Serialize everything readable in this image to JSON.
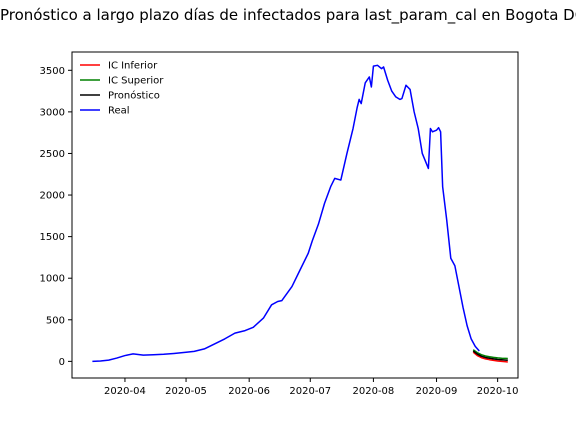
{
  "chart_data": {
    "type": "line",
    "title": "Pronóstico a largo plazo días de infectados para last_param_cal en Bogota DC",
    "xlabel": "",
    "ylabel": "",
    "x_range": [
      "2020-03-06",
      "2020-10-11"
    ],
    "ylim": [
      -200,
      3720
    ],
    "x_ticks": [
      {
        "date": "2020-04-01",
        "label": "2020-04"
      },
      {
        "date": "2020-05-01",
        "label": "2020-05"
      },
      {
        "date": "2020-06-01",
        "label": "2020-06"
      },
      {
        "date": "2020-07-01",
        "label": "2020-07"
      },
      {
        "date": "2020-08-01",
        "label": "2020-08"
      },
      {
        "date": "2020-09-01",
        "label": "2020-09"
      },
      {
        "date": "2020-10-01",
        "label": "2020-10"
      }
    ],
    "y_ticks": [
      0,
      500,
      1000,
      1500,
      2000,
      2500,
      3000,
      3500
    ],
    "grid": false,
    "legend_position": "top-left",
    "series": [
      {
        "name": "IC Inferior",
        "color": "#ff0000",
        "points": [
          [
            "2020-09-19",
            110
          ],
          [
            "2020-09-21",
            70
          ],
          [
            "2020-09-23",
            45
          ],
          [
            "2020-09-25",
            30
          ],
          [
            "2020-09-27",
            20
          ],
          [
            "2020-09-29",
            12
          ],
          [
            "2020-10-01",
            5
          ],
          [
            "2020-10-03",
            0
          ],
          [
            "2020-10-05",
            -5
          ],
          [
            "2020-10-06",
            -8
          ]
        ]
      },
      {
        "name": "IC Superior",
        "color": "#008000",
        "points": [
          [
            "2020-09-19",
            140
          ],
          [
            "2020-09-21",
            105
          ],
          [
            "2020-09-23",
            80
          ],
          [
            "2020-09-25",
            65
          ],
          [
            "2020-09-27",
            55
          ],
          [
            "2020-09-29",
            48
          ],
          [
            "2020-10-01",
            42
          ],
          [
            "2020-10-03",
            38
          ],
          [
            "2020-10-05",
            36
          ],
          [
            "2020-10-06",
            35
          ]
        ]
      },
      {
        "name": "Pronóstico",
        "color": "#000000",
        "points": [
          [
            "2020-09-19",
            125
          ],
          [
            "2020-09-21",
            88
          ],
          [
            "2020-09-23",
            62
          ],
          [
            "2020-09-25",
            47
          ],
          [
            "2020-09-27",
            37
          ],
          [
            "2020-09-29",
            30
          ],
          [
            "2020-10-01",
            23
          ],
          [
            "2020-10-03",
            19
          ],
          [
            "2020-10-05",
            15
          ],
          [
            "2020-10-06",
            13
          ]
        ]
      },
      {
        "name": "Real",
        "color": "#0000ff",
        "points": [
          [
            "2020-03-16",
            0
          ],
          [
            "2020-03-20",
            5
          ],
          [
            "2020-03-24",
            15
          ],
          [
            "2020-03-28",
            40
          ],
          [
            "2020-04-01",
            70
          ],
          [
            "2020-04-05",
            90
          ],
          [
            "2020-04-10",
            75
          ],
          [
            "2020-04-15",
            80
          ],
          [
            "2020-04-20",
            85
          ],
          [
            "2020-04-25",
            95
          ],
          [
            "2020-05-01",
            110
          ],
          [
            "2020-05-05",
            120
          ],
          [
            "2020-05-10",
            150
          ],
          [
            "2020-05-15",
            210
          ],
          [
            "2020-05-20",
            270
          ],
          [
            "2020-05-25",
            340
          ],
          [
            "2020-05-30",
            370
          ],
          [
            "2020-06-03",
            410
          ],
          [
            "2020-06-08",
            520
          ],
          [
            "2020-06-12",
            680
          ],
          [
            "2020-06-15",
            720
          ],
          [
            "2020-06-17",
            730
          ],
          [
            "2020-06-22",
            900
          ],
          [
            "2020-06-26",
            1100
          ],
          [
            "2020-06-30",
            1300
          ],
          [
            "2020-07-02",
            1450
          ],
          [
            "2020-07-05",
            1650
          ],
          [
            "2020-07-08",
            1900
          ],
          [
            "2020-07-11",
            2100
          ],
          [
            "2020-07-13",
            2200
          ],
          [
            "2020-07-16",
            2180
          ],
          [
            "2020-07-19",
            2500
          ],
          [
            "2020-07-22",
            2800
          ],
          [
            "2020-07-24",
            3050
          ],
          [
            "2020-07-25",
            3150
          ],
          [
            "2020-07-26",
            3100
          ],
          [
            "2020-07-28",
            3350
          ],
          [
            "2020-07-30",
            3420
          ],
          [
            "2020-07-31",
            3300
          ],
          [
            "2020-08-01",
            3550
          ],
          [
            "2020-08-03",
            3560
          ],
          [
            "2020-08-05",
            3520
          ],
          [
            "2020-08-06",
            3540
          ],
          [
            "2020-08-08",
            3380
          ],
          [
            "2020-08-10",
            3250
          ],
          [
            "2020-08-12",
            3180
          ],
          [
            "2020-08-14",
            3150
          ],
          [
            "2020-08-15",
            3160
          ],
          [
            "2020-08-17",
            3320
          ],
          [
            "2020-08-19",
            3270
          ],
          [
            "2020-08-21",
            3000
          ],
          [
            "2020-08-23",
            2800
          ],
          [
            "2020-08-25",
            2500
          ],
          [
            "2020-08-28",
            2320
          ],
          [
            "2020-08-29",
            2800
          ],
          [
            "2020-08-30",
            2760
          ],
          [
            "2020-09-01",
            2780
          ],
          [
            "2020-09-02",
            2810
          ],
          [
            "2020-09-03",
            2760
          ],
          [
            "2020-09-04",
            2100
          ],
          [
            "2020-09-06",
            1700
          ],
          [
            "2020-09-08",
            1240
          ],
          [
            "2020-09-10",
            1150
          ],
          [
            "2020-09-12",
            900
          ],
          [
            "2020-09-14",
            650
          ],
          [
            "2020-09-16",
            430
          ],
          [
            "2020-09-18",
            270
          ],
          [
            "2020-09-20",
            180
          ],
          [
            "2020-09-22",
            125
          ]
        ]
      }
    ]
  }
}
